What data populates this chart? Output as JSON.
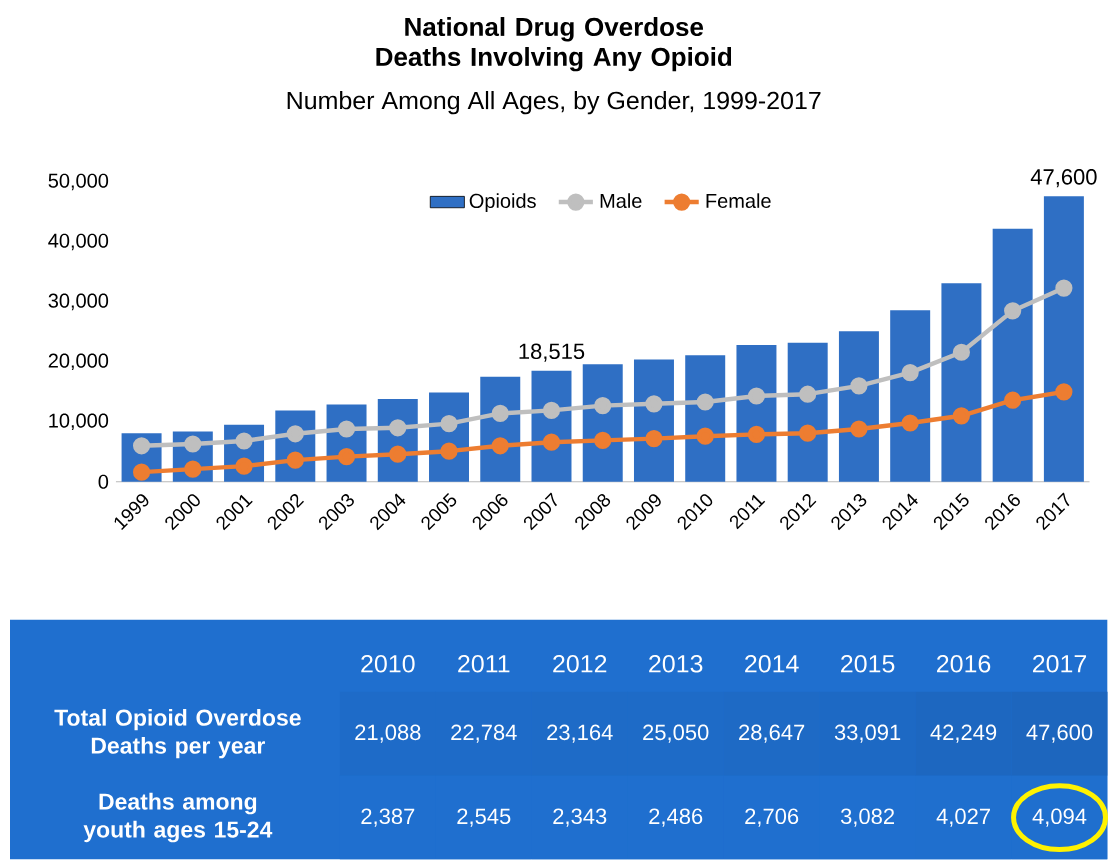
{
  "chart_data": [
    {
      "type": "bar",
      "title": "National Drug Overdose Deaths Involving Any Opioid",
      "subtitle": "Number Among All Ages, by Gender, 1999-2017",
      "categories": [
        "1999",
        "2000",
        "2001",
        "2002",
        "2003",
        "2004",
        "2005",
        "2006",
        "2007",
        "2008",
        "2009",
        "2010",
        "2011",
        "2012",
        "2013",
        "2014",
        "2015",
        "2016",
        "2017"
      ],
      "series": [
        {
          "name": "Opioids",
          "color": "#2f6fc4",
          "values": [
            8100,
            8400,
            9500,
            11900,
            12900,
            13800,
            14900,
            17500,
            18515,
            19600,
            20400,
            21100,
            22800,
            23200,
            25100,
            28600,
            33100,
            42200,
            47600
          ],
          "value_labels": [
            null,
            null,
            null,
            null,
            null,
            null,
            null,
            null,
            "18,515",
            null,
            null,
            null,
            null,
            null,
            null,
            null,
            null,
            null,
            "47,600"
          ]
        },
        {
          "name": "Male",
          "type": "line",
          "color": "#bfbfbf",
          "values": [
            6000,
            6300,
            6800,
            8000,
            8800,
            9000,
            9700,
            11400,
            11900,
            12700,
            13000,
            13300,
            14300,
            14600,
            16000,
            18200,
            21600,
            28500,
            32300
          ]
        },
        {
          "name": "Female",
          "type": "line",
          "color": "#ed7d31",
          "values": [
            1600,
            2100,
            2600,
            3600,
            4200,
            4600,
            5100,
            6000,
            6600,
            6900,
            7200,
            7600,
            7900,
            8100,
            8800,
            9800,
            11000,
            13600,
            15000
          ]
        }
      ],
      "ylim": [
        0,
        50000
      ],
      "yticks": [
        0,
        {
          "value": 10000,
          "label": "10,000"
        },
        {
          "value": 20000,
          "label": "20,000"
        },
        {
          "value": 30000,
          "label": "30,000"
        },
        {
          "value": 40000,
          "label": "40,000"
        },
        {
          "value": 50000,
          "label": "50,000"
        }
      ],
      "legend": "top",
      "marker": "circle"
    },
    {
      "type": "heatmap",
      "categories": [
        "2010",
        "2011",
        "2012",
        "2013",
        "2014",
        "2015",
        "2016",
        "2017"
      ],
      "y_categories": [
        "Total Opioid Overdose Deaths per year",
        "Deaths among youth ages 15-24"
      ],
      "cells": [
        [
          21088,
          22784,
          23164,
          25050,
          28647,
          33091,
          42249,
          47600
        ],
        [
          2387,
          2545,
          2343,
          2486,
          2706,
          3082,
          4027,
          4094
        ]
      ],
      "cell_labels": [
        [
          "21,088",
          "22,784",
          "23,164",
          "25,050",
          "28,647",
          "33,091",
          "42,249",
          "47,600"
        ],
        [
          "2,387",
          "2,545",
          "2,343",
          "2,486",
          "2,706",
          "3,082",
          "4,027",
          "4,094"
        ]
      ]
    }
  ]
}
